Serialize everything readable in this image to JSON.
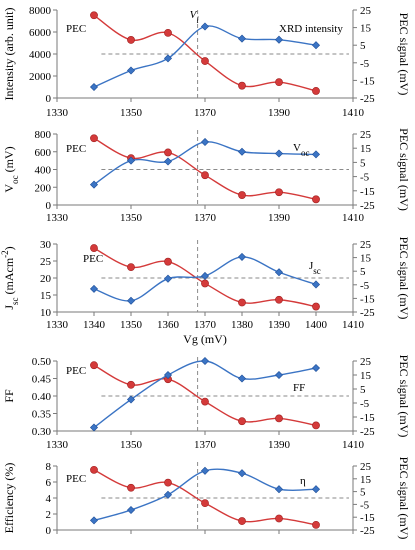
{
  "chart_data": [
    {
      "type": "line",
      "xlim": [
        1330,
        1410
      ],
      "x_ticks": [
        "1330",
        "1350",
        "1370",
        "1390",
        "1410"
      ],
      "ylabel_left": "Intensity (arb. unit)",
      "ylim_left": [
        0,
        8000
      ],
      "y_ticks_left": [
        "0",
        "2000",
        "4000",
        "6000",
        "8000"
      ],
      "ylabel_right": "PEC signal (mV)",
      "ylim_right": [
        -25,
        25
      ],
      "y_ticks_right": [
        "25",
        "15",
        "5",
        "-5",
        "-15",
        "-25"
      ],
      "series": [
        {
          "name": "PEC",
          "axis": "right",
          "color": "#d43a3a",
          "x": [
            1340,
            1350,
            1360,
            1370,
            1380,
            1390,
            1400
          ],
          "y": [
            22,
            8,
            12,
            -4,
            -18,
            -16,
            -21
          ]
        },
        {
          "name": "XRD intensity",
          "axis": "left",
          "color": "#3b74c4",
          "x": [
            1340,
            1350,
            1360,
            1370,
            1380,
            1390,
            1400
          ],
          "y": [
            1000,
            2500,
            3600,
            6500,
            5400,
            5300,
            4800
          ]
        }
      ],
      "annotations": [
        {
          "text": "V",
          "sub": "i",
          "x": 1368
        }
      ],
      "dashed_hline_right": 0,
      "dashed_vline": 1368
    },
    {
      "type": "line",
      "xlim": [
        1330,
        1410
      ],
      "x_ticks": [
        "1330",
        "1350",
        "1370",
        "1390",
        "1410"
      ],
      "ylabel_left": "V",
      "ylabel_left_sub": "oc",
      "ylabel_left_unit": " (mV)",
      "ylim_left": [
        0,
        800
      ],
      "y_ticks_left": [
        "0",
        "200",
        "400",
        "600",
        "800"
      ],
      "ylabel_right": "PEC signal (mV)",
      "ylim_right": [
        -25,
        25
      ],
      "y_ticks_right": [
        "25",
        "15",
        "5",
        "-5",
        "-15",
        "-25"
      ],
      "series": [
        {
          "name": "PEC",
          "axis": "right",
          "color": "#d43a3a",
          "x": [
            1340,
            1350,
            1360,
            1370,
            1380,
            1390,
            1400
          ],
          "y": [
            22,
            8,
            12,
            -4,
            -18,
            -16,
            -21
          ]
        },
        {
          "name": "V",
          "name_sub": "oc",
          "axis": "left",
          "color": "#3b74c4",
          "x": [
            1340,
            1350,
            1360,
            1370,
            1380,
            1390,
            1400
          ],
          "y": [
            230,
            500,
            490,
            710,
            600,
            580,
            570
          ]
        }
      ],
      "dashed_hline_right": 0,
      "dashed_vline": 1368
    },
    {
      "type": "line",
      "xlim": [
        1330,
        1410
      ],
      "x_ticks": [
        "1330",
        "1340",
        "1350",
        "1360",
        "1370",
        "1380",
        "1390",
        "1400",
        "1410"
      ],
      "xlabel": "Vg (mV)",
      "ylabel_left": "J",
      "ylabel_left_sub": "sc",
      "ylabel_left_unit": " (mAcm",
      "ylabel_left_sup": "-2",
      "ylabel_left_close": ")",
      "ylim_left": [
        10,
        30
      ],
      "y_ticks_left": [
        "10",
        "15",
        "20",
        "25",
        "30"
      ],
      "ylabel_right": "PEC signal (mV)",
      "ylim_right": [
        -25,
        25
      ],
      "y_ticks_right": [
        "25",
        "15",
        "5",
        "-5",
        "-15",
        "-25"
      ],
      "series": [
        {
          "name": "PEC",
          "axis": "right",
          "color": "#d43a3a",
          "x": [
            1340,
            1350,
            1360,
            1370,
            1380,
            1390,
            1400
          ],
          "y": [
            22,
            8,
            12,
            -4,
            -18,
            -16,
            -21
          ]
        },
        {
          "name": "J",
          "name_sub": "sc",
          "axis": "left",
          "color": "#3b74c4",
          "x": [
            1340,
            1350,
            1360,
            1370,
            1380,
            1390,
            1400
          ],
          "y": [
            16.8,
            13.3,
            19.8,
            20.6,
            26.2,
            21.7,
            18.1
          ]
        }
      ],
      "dashed_hline_right": 0,
      "dashed_vline": 1368
    },
    {
      "type": "line",
      "xlim": [
        1330,
        1410
      ],
      "x_ticks": [
        "1330",
        "1350",
        "1370",
        "1390",
        "1410"
      ],
      "ylabel_left": "FF",
      "ylim_left": [
        0.3,
        0.5
      ],
      "y_ticks_left": [
        "0.30",
        "0.35",
        "0.40",
        "0.45",
        "0.50"
      ],
      "ylabel_right": "PEC signal (mV)",
      "ylim_right": [
        -25,
        25
      ],
      "y_ticks_right": [
        "25",
        "15",
        "5",
        "-5",
        "-15",
        "-25"
      ],
      "series": [
        {
          "name": "PEC",
          "axis": "right",
          "color": "#d43a3a",
          "x": [
            1340,
            1350,
            1360,
            1370,
            1380,
            1390,
            1400
          ],
          "y": [
            22,
            8,
            12,
            -4,
            -18,
            -16,
            -21
          ]
        },
        {
          "name": "FF",
          "axis": "left",
          "color": "#3b74c4",
          "x": [
            1340,
            1350,
            1360,
            1370,
            1380,
            1390,
            1400
          ],
          "y": [
            0.31,
            0.39,
            0.46,
            0.5,
            0.45,
            0.46,
            0.48
          ]
        }
      ],
      "dashed_hline_right": 0,
      "dashed_vline": 1368
    },
    {
      "type": "line",
      "xlim": [
        1330,
        1410
      ],
      "x_ticks": [
        "1330",
        "1350",
        "1370",
        "1390",
        "1410"
      ],
      "ylabel_left": "Efficiency (%)",
      "ylim_left": [
        0,
        8
      ],
      "y_ticks_left": [
        "0",
        "2",
        "4",
        "6",
        "8"
      ],
      "ylabel_right": "PEC signal (mV)",
      "ylim_right": [
        -25,
        25
      ],
      "y_ticks_right": [
        "25",
        "15",
        "5",
        "-5",
        "-15",
        "-25"
      ],
      "series": [
        {
          "name": "PEC",
          "axis": "right",
          "color": "#d43a3a",
          "x": [
            1340,
            1350,
            1360,
            1370,
            1380,
            1390,
            1400
          ],
          "y": [
            22,
            8,
            12,
            -4,
            -18,
            -16,
            -21
          ]
        },
        {
          "name": "η",
          "axis": "left",
          "color": "#3b74c4",
          "x": [
            1340,
            1350,
            1360,
            1370,
            1380,
            1390,
            1400
          ],
          "y": [
            1.2,
            2.5,
            4.4,
            7.4,
            7.1,
            5.1,
            5.1
          ]
        }
      ],
      "dashed_hline_right": 0,
      "dashed_vline": 1368
    }
  ]
}
